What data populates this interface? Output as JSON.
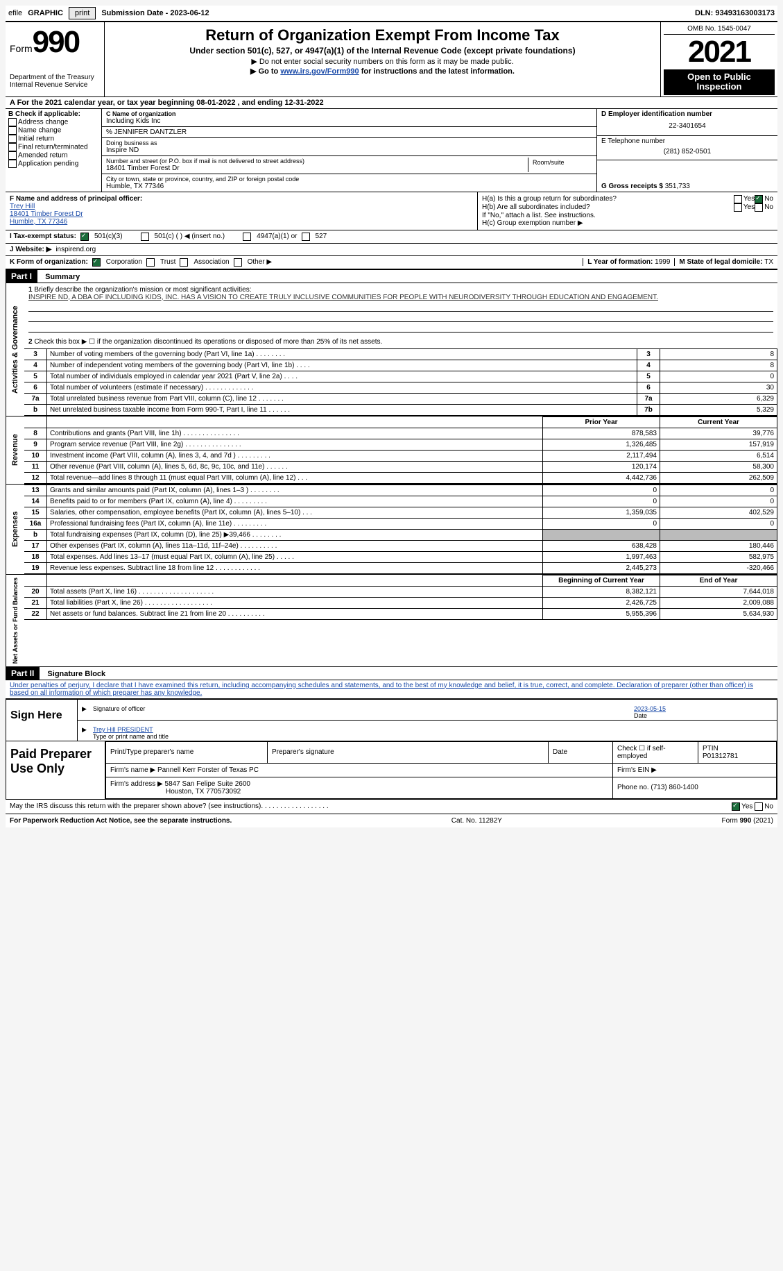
{
  "topbar": {
    "efile": "efile",
    "graphic": "GRAPHIC",
    "print": "print",
    "submission_label": "Submission Date - ",
    "submission_date": "2023-06-12",
    "dln_label": "DLN: ",
    "dln": "93493163003173"
  },
  "header": {
    "form": "Form",
    "form_no": "990",
    "dept": "Department of the Treasury Internal Revenue Service",
    "title": "Return of Organization Exempt From Income Tax",
    "subtitle": "Under section 501(c), 527, or 4947(a)(1) of the Internal Revenue Code (except private foundations)",
    "line1": "▶ Do not enter social security numbers on this form as it may be made public.",
    "line2_pre": "▶ Go to ",
    "line2_link": "www.irs.gov/Form990",
    "line2_post": " for instructions and the latest information.",
    "omb": "OMB No. 1545-0047",
    "year": "2021",
    "inspect": "Open to Public Inspection"
  },
  "row_a": {
    "text_pre": "A For the 2021 calendar year, or tax year beginning ",
    "begin": "08-01-2022",
    "mid": " , and ending ",
    "end": "12-31-2022"
  },
  "col_b": {
    "title": "B Check if applicable:",
    "opts": [
      "Address change",
      "Name change",
      "Initial return",
      "Final return/terminated",
      "Amended return",
      "Application pending"
    ]
  },
  "col_c": {
    "name_label": "C Name of organization",
    "name": "Including Kids Inc",
    "care_of": "% JENNIFER DANTZLER",
    "dba_label": "Doing business as",
    "dba": "Inspire ND",
    "street_label": "Number and street (or P.O. box if mail is not delivered to street address)",
    "room_label": "Room/suite",
    "street": "18401 Timber Forest Dr",
    "city_label": "City or town, state or province, country, and ZIP or foreign postal code",
    "city": "Humble, TX  77346"
  },
  "col_d": {
    "ein_label": "D Employer identification number",
    "ein": "22-3401654",
    "phone_label": "E Telephone number",
    "phone": "(281) 852-0501",
    "gross_label": "G Gross receipts $ ",
    "gross": "351,733"
  },
  "col_f": {
    "label": "F  Name and address of principal officer:",
    "name": "Trey Hill",
    "addr1": "18401 Timber Forest Dr",
    "addr2": "Humble, TX  77346"
  },
  "col_h": {
    "ha": "H(a)  Is this a group return for subordinates?",
    "hb": "H(b)  Are all subordinates included?",
    "hb_note": "If \"No,\" attach a list. See instructions.",
    "hc": "H(c)  Group exemption number ▶",
    "yes": "Yes",
    "no": "No"
  },
  "row_i": {
    "label": "I  Tax-exempt status:",
    "o1": "501(c)(3)",
    "o2": "501(c) (   ) ◀ (insert no.)",
    "o3": "4947(a)(1) or",
    "o4": "527"
  },
  "row_j": {
    "label": "J  Website: ▶",
    "val": "inspirend.org"
  },
  "row_k": {
    "label": "K Form of organization:",
    "o1": "Corporation",
    "o2": "Trust",
    "o3": "Association",
    "o4": "Other ▶",
    "l_label": "L Year of formation: ",
    "l_val": "1999",
    "m_label": "M State of legal domicile: ",
    "m_val": "TX"
  },
  "part1": {
    "num": "Part I",
    "title": "Summary",
    "q1_label": "1",
    "q1_text": "Briefly describe the organization's mission or most significant activities:",
    "q1_val": "INSPIRE ND, A DBA OF INCLUDING KIDS, INC. HAS A VISION TO CREATE TRULY INCLUSIVE COMMUNITIES FOR PEOPLE WITH NEURODIVERSITY THROUGH EDUCATION AND ENGAGEMENT.",
    "q2": "Check this box ▶ ☐ if the organization discontinued its operations or disposed of more than 25% of its net assets.",
    "vtab1": "Activities & Governance",
    "vtab2": "Revenue",
    "vtab3": "Expenses",
    "vtab4": "Net Assets or Fund Balances",
    "rows_gov": [
      {
        "n": "3",
        "d": "Number of voting members of the governing body (Part VI, line 1a)",
        "box": "3",
        "v": "8"
      },
      {
        "n": "4",
        "d": "Number of independent voting members of the governing body (Part VI, line 1b)",
        "box": "4",
        "v": "8"
      },
      {
        "n": "5",
        "d": "Total number of individuals employed in calendar year 2021 (Part V, line 2a)",
        "box": "5",
        "v": "0"
      },
      {
        "n": "6",
        "d": "Total number of volunteers (estimate if necessary)",
        "box": "6",
        "v": "30"
      },
      {
        "n": "7a",
        "d": "Total unrelated business revenue from Part VIII, column (C), line 12",
        "box": "7a",
        "v": "6,329"
      },
      {
        "n": "b",
        "d": "Net unrelated business taxable income from Form 990-T, Part I, line 11",
        "box": "7b",
        "v": "5,329"
      }
    ],
    "hdr_prior": "Prior Year",
    "hdr_curr": "Current Year",
    "rows_rev": [
      {
        "n": "8",
        "d": "Contributions and grants (Part VIII, line 1h)",
        "p": "878,583",
        "c": "39,776"
      },
      {
        "n": "9",
        "d": "Program service revenue (Part VIII, line 2g)",
        "p": "1,326,485",
        "c": "157,919"
      },
      {
        "n": "10",
        "d": "Investment income (Part VIII, column (A), lines 3, 4, and 7d )",
        "p": "2,117,494",
        "c": "6,514"
      },
      {
        "n": "11",
        "d": "Other revenue (Part VIII, column (A), lines 5, 6d, 8c, 9c, 10c, and 11e)",
        "p": "120,174",
        "c": "58,300"
      },
      {
        "n": "12",
        "d": "Total revenue—add lines 8 through 11 (must equal Part VIII, column (A), line 12)",
        "p": "4,442,736",
        "c": "262,509"
      }
    ],
    "rows_exp": [
      {
        "n": "13",
        "d": "Grants and similar amounts paid (Part IX, column (A), lines 1–3 )",
        "p": "0",
        "c": "0"
      },
      {
        "n": "14",
        "d": "Benefits paid to or for members (Part IX, column (A), line 4)",
        "p": "0",
        "c": "0"
      },
      {
        "n": "15",
        "d": "Salaries, other compensation, employee benefits (Part IX, column (A), lines 5–10)",
        "p": "1,359,035",
        "c": "402,529"
      },
      {
        "n": "16a",
        "d": "Professional fundraising fees (Part IX, column (A), line 11e)",
        "p": "0",
        "c": "0"
      },
      {
        "n": "b",
        "d": "Total fundraising expenses (Part IX, column (D), line 25) ▶39,466",
        "p": "",
        "c": "",
        "grey": true
      },
      {
        "n": "17",
        "d": "Other expenses (Part IX, column (A), lines 11a–11d, 11f–24e)",
        "p": "638,428",
        "c": "180,446"
      },
      {
        "n": "18",
        "d": "Total expenses. Add lines 13–17 (must equal Part IX, column (A), line 25)",
        "p": "1,997,463",
        "c": "582,975"
      },
      {
        "n": "19",
        "d": "Revenue less expenses. Subtract line 18 from line 12",
        "p": "2,445,273",
        "c": "-320,466"
      }
    ],
    "hdr_beg": "Beginning of Current Year",
    "hdr_end": "End of Year",
    "rows_net": [
      {
        "n": "20",
        "d": "Total assets (Part X, line 16)",
        "p": "8,382,121",
        "c": "7,644,018"
      },
      {
        "n": "21",
        "d": "Total liabilities (Part X, line 26)",
        "p": "2,426,725",
        "c": "2,009,088"
      },
      {
        "n": "22",
        "d": "Net assets or fund balances. Subtract line 21 from line 20",
        "p": "5,955,396",
        "c": "5,634,930"
      }
    ]
  },
  "part2": {
    "num": "Part II",
    "title": "Signature Block",
    "decl": "Under penalties of perjury, I declare that I have examined this return, including accompanying schedules and statements, and to the best of my knowledge and belief, it is true, correct, and complete. Declaration of preparer (other than officer) is based on all information of which preparer has any knowledge."
  },
  "sign": {
    "here": "Sign Here",
    "sig_label": "Signature of officer",
    "date_label": "Date",
    "date_val": "2023-05-15",
    "name_val": "Trey Hill PRESIDENT",
    "name_label": "Type or print name and title"
  },
  "prep": {
    "title": "Paid Preparer Use Only",
    "h_name": "Print/Type preparer's name",
    "h_sig": "Preparer's signature",
    "h_date": "Date",
    "h_check": "Check ☐ if self-employed",
    "h_ptin": "PTIN",
    "ptin": "P01312781",
    "firm_name_l": "Firm's name    ▶ ",
    "firm_name": "Pannell Kerr Forster of Texas PC",
    "firm_ein_l": "Firm's EIN ▶",
    "firm_addr_l": "Firm's address ▶ ",
    "firm_addr1": "5847 San Felipe Suite 2600",
    "firm_addr2": "Houston, TX  770573092",
    "firm_phone_l": "Phone no. ",
    "firm_phone": "(713) 860-1400"
  },
  "footer": {
    "discuss": "May the IRS discuss this return with the preparer shown above? (see instructions)",
    "yes": "Yes",
    "no": "No",
    "pra": "For Paperwork Reduction Act Notice, see the separate instructions.",
    "cat": "Cat. No. 11282Y",
    "form": "Form 990 (2021)"
  }
}
